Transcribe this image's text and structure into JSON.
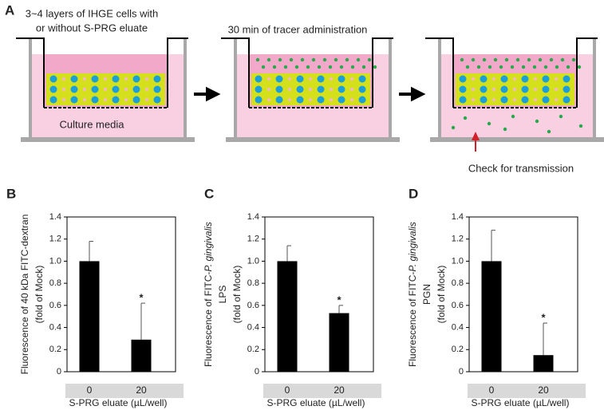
{
  "panel_a": {
    "label": "A",
    "caption_lines": [
      "3~4 layers of IHGE cells with",
      "or without S-PRG eluate"
    ],
    "media_label": "Culture media",
    "tracer_label": "30 min of tracer administration",
    "check_label": "Check for transmission"
  },
  "chart_data": [
    {
      "type": "bar",
      "panel_label": "B",
      "y_label_lines": [
        [
          {
            "text": "Fluorescence of 40 kDa FITC-dextran"
          }
        ],
        [
          {
            "text": "(fold of Mock)"
          }
        ]
      ],
      "x_label": "S-PRG eluate (µL/well)",
      "categories": [
        "0",
        "20"
      ],
      "values": [
        1.0,
        0.29
      ],
      "errors": [
        0.18,
        0.33
      ],
      "value_annotations": [
        null,
        "*"
      ],
      "color": "#000000",
      "ylim": [
        0,
        1.4
      ],
      "yticks": [
        0,
        0.2,
        0.4,
        0.6,
        0.8,
        {
          "value": 1,
          "label": "1.0"
        },
        1.2,
        1.4
      ]
    },
    {
      "type": "bar",
      "panel_label": "C",
      "y_label_lines": [
        [
          {
            "text": "Fluorescence of FITC-"
          },
          {
            "text": "P. gingivalis",
            "italic": true
          }
        ],
        [
          {
            "text": "LPS"
          }
        ],
        [
          {
            "text": "(fold of Mock)"
          }
        ]
      ],
      "x_label": "S-PRG eluate (µL/well)",
      "categories": [
        "0",
        "20"
      ],
      "values": [
        1.0,
        0.53
      ],
      "errors": [
        0.14,
        0.07
      ],
      "value_annotations": [
        null,
        "*"
      ],
      "color": "#000000",
      "ylim": [
        0,
        1.4
      ],
      "yticks": [
        0,
        0.2,
        0.4,
        0.6,
        0.8,
        {
          "value": 1,
          "label": "1.0"
        },
        1.2,
        1.4
      ]
    },
    {
      "type": "bar",
      "panel_label": "D",
      "y_label_lines": [
        [
          {
            "text": "Fluorescence of FITC-"
          },
          {
            "text": "P. gingivalis",
            "italic": true
          }
        ],
        [
          {
            "text": "PGN"
          }
        ],
        [
          {
            "text": "(fold of Mock)"
          }
        ]
      ],
      "x_label": "S-PRG eluate (µL/well)",
      "categories": [
        "0",
        "20"
      ],
      "values": [
        1.0,
        0.15
      ],
      "errors": [
        0.28,
        0.29
      ],
      "value_annotations": [
        null,
        "*"
      ],
      "color": "#000000",
      "ylim": [
        0,
        1.4
      ],
      "yticks": [
        0,
        0.2,
        0.4,
        0.6,
        0.8,
        {
          "value": 1,
          "label": "1.0"
        },
        1.2,
        1.4
      ]
    }
  ]
}
